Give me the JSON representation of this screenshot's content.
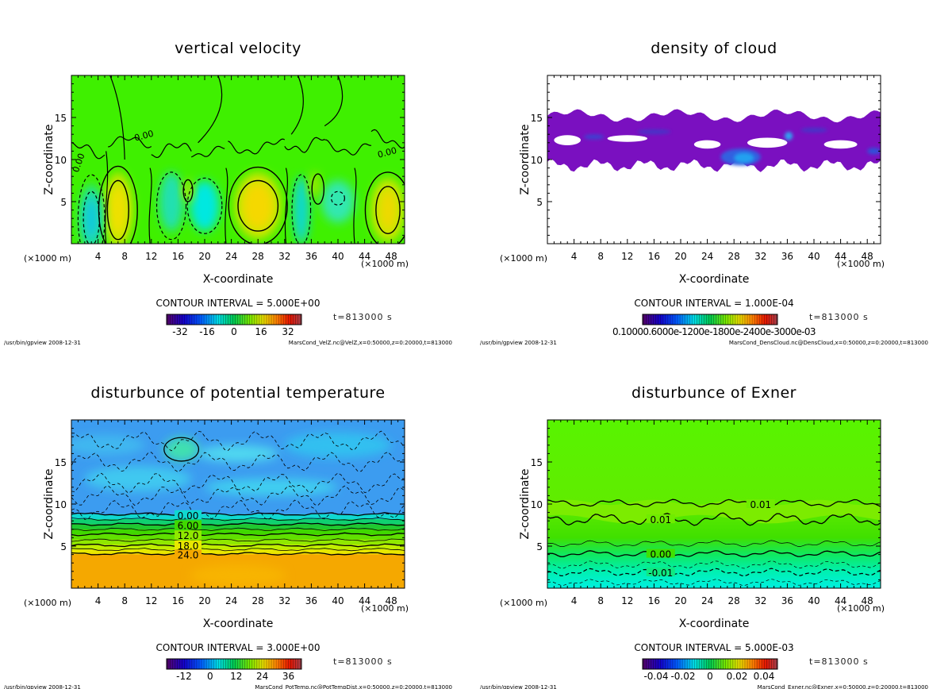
{
  "chart_data": [
    {
      "type": "heatmap",
      "title": "vertical velocity",
      "xlabel": "X-coordinate",
      "ylabel": "Z-coordinate",
      "x_unit": "(×1000 m)",
      "xlim": [
        0,
        50
      ],
      "ylim": [
        0,
        20
      ],
      "xticks": [
        "4",
        "8",
        "12",
        "16",
        "20",
        "24",
        "28",
        "32",
        "36",
        "40",
        "44",
        "48"
      ],
      "yticks": [
        "5",
        "10",
        "15"
      ],
      "contour_labels": [
        "0.00",
        "0.00",
        "0.00"
      ],
      "contour_interval": "CONTOUR INTERVAL = 5.000E+00",
      "colorbar_ticks": [
        "-32",
        "-16",
        "0",
        "16",
        "32"
      ],
      "colorbar_range": [
        -40,
        40
      ],
      "time": "t=813000 s",
      "footer_left": "/usr/bin/gpview  2008-12-31",
      "footer_right": "MarsCond_VelZ.nc@VelZ,x=0:50000,z=0:20000,t=813000"
    },
    {
      "type": "heatmap",
      "title": "density of cloud",
      "xlabel": "X-coordinate",
      "ylabel": "Z-coordinate",
      "x_unit": "(×1000 m)",
      "xlim": [
        0,
        50
      ],
      "ylim": [
        0,
        20
      ],
      "xticks": [
        "4",
        "8",
        "12",
        "16",
        "20",
        "24",
        "28",
        "32",
        "36",
        "40",
        "44",
        "48"
      ],
      "yticks": [
        "5",
        "10",
        "15"
      ],
      "contour_labels": [],
      "contour_interval": "CONTOUR INTERVAL = 1.000E-04",
      "colorbar_ticks_overlapping": "0.10000.6000e-1200e-1800e-2400e-3000e-03",
      "time": "t=813000 s",
      "footer_left": "/usr/bin/gpview  2008-12-31",
      "footer_right": "MarsCond_DensCloud.nc@DensCloud,x=0:50000,z=0:20000,t=813000"
    },
    {
      "type": "heatmap",
      "title": "disturbunce of potential temperature",
      "xlabel": "X-coordinate",
      "ylabel": "Z-coordinate",
      "x_unit": "(×1000 m)",
      "xlim": [
        0,
        50
      ],
      "ylim": [
        0,
        20
      ],
      "xticks": [
        "4",
        "8",
        "12",
        "16",
        "20",
        "24",
        "28",
        "32",
        "36",
        "40",
        "44",
        "48"
      ],
      "yticks": [
        "5",
        "10",
        "15"
      ],
      "contour_labels": [
        "0.00",
        "6.00",
        "12.0",
        "18.0",
        "24.0"
      ],
      "contour_interval": "CONTOUR INTERVAL = 3.000E+00",
      "colorbar_ticks": [
        "-12",
        "0",
        "12",
        "24",
        "36"
      ],
      "colorbar_range": [
        -20,
        42
      ],
      "time": "t=813000 s",
      "footer_left": "/usr/bin/gpview  2008-12-31",
      "footer_right": "MarsCond_PotTemp.nc@PotTempDist,x=0:50000,z=0:20000,t=813000"
    },
    {
      "type": "heatmap",
      "title": "disturbunce of Exner",
      "xlabel": "X-coordinate",
      "ylabel": "Z-coordinate",
      "x_unit": "(×1000 m)",
      "xlim": [
        0,
        50
      ],
      "ylim": [
        0,
        20
      ],
      "xticks": [
        "4",
        "8",
        "12",
        "16",
        "20",
        "24",
        "28",
        "32",
        "36",
        "40",
        "44",
        "48"
      ],
      "yticks": [
        "5",
        "10",
        "15"
      ],
      "contour_labels": [
        "0.01",
        "0.01",
        "0.00",
        "-0.01"
      ],
      "contour_interval": "CONTOUR INTERVAL = 5.000E-03",
      "colorbar_ticks": [
        "-0.04",
        "-0.02",
        "0",
        "0.02",
        "0.04"
      ],
      "colorbar_range": [
        -0.05,
        0.05
      ],
      "time": "t=813000 s",
      "footer_left": "/usr/bin/gpview  2008-12-31",
      "footer_right": "MarsCond_Exner.nc@Exner,x=0:50000,z=0:20000,t=813000"
    }
  ]
}
